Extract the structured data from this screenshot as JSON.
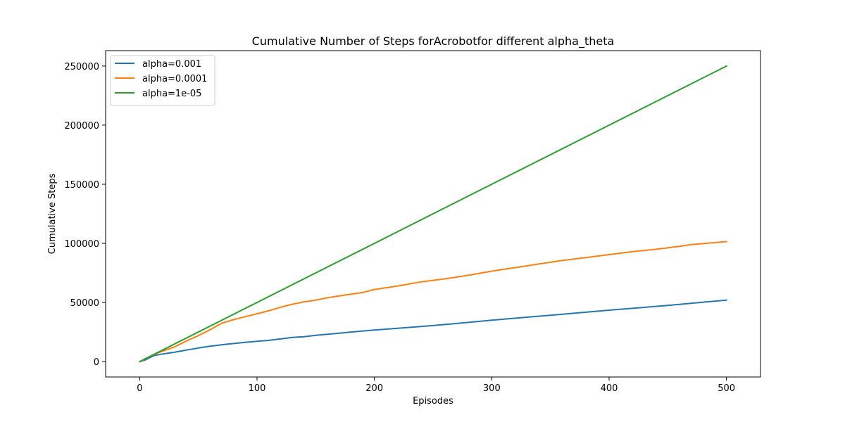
{
  "chart_data": {
    "type": "line",
    "title": "Cumulative Number of Steps forAcrobotfor different alpha_theta",
    "xlabel": "Episodes",
    "ylabel": "Cumulative Steps",
    "xlim": [
      -29,
      529
    ],
    "ylim": [
      -13000,
      263000
    ],
    "xticks": [
      0,
      100,
      200,
      300,
      400,
      500
    ],
    "yticks": [
      0,
      50000,
      100000,
      150000,
      200000,
      250000
    ],
    "xtick_labels": [
      "0",
      "100",
      "200",
      "300",
      "400",
      "500"
    ],
    "ytick_labels": [
      "0",
      "50000",
      "100000",
      "150000",
      "200000",
      "250000"
    ],
    "grid": false,
    "legend_position": "top-left",
    "series": [
      {
        "name": "alpha=0.001",
        "color": "#1f77b4",
        "points": [
          [
            0,
            0
          ],
          [
            5,
            1500
          ],
          [
            12,
            5000
          ],
          [
            20,
            6500
          ],
          [
            30,
            8000
          ],
          [
            40,
            9800
          ],
          [
            50,
            11500
          ],
          [
            60,
            13000
          ],
          [
            75,
            14800
          ],
          [
            90,
            16300
          ],
          [
            100,
            17200
          ],
          [
            110,
            18000
          ],
          [
            120,
            19200
          ],
          [
            130,
            20400
          ],
          [
            140,
            21000
          ],
          [
            150,
            22200
          ],
          [
            170,
            24000
          ],
          [
            180,
            25000
          ],
          [
            200,
            26700
          ],
          [
            220,
            28200
          ],
          [
            250,
            30500
          ],
          [
            300,
            35000
          ],
          [
            350,
            39200
          ],
          [
            400,
            43500
          ],
          [
            450,
            47500
          ],
          [
            500,
            52000
          ]
        ]
      },
      {
        "name": "alpha=0.0001",
        "color": "#ff7f0e",
        "points": [
          [
            0,
            0
          ],
          [
            10,
            5000
          ],
          [
            20,
            9000
          ],
          [
            30,
            12500
          ],
          [
            40,
            17500
          ],
          [
            50,
            22000
          ],
          [
            60,
            27000
          ],
          [
            70,
            32500
          ],
          [
            80,
            35500
          ],
          [
            90,
            38000
          ],
          [
            100,
            40500
          ],
          [
            110,
            43000
          ],
          [
            120,
            46000
          ],
          [
            130,
            48500
          ],
          [
            140,
            50500
          ],
          [
            150,
            52000
          ],
          [
            160,
            54000
          ],
          [
            170,
            55500
          ],
          [
            180,
            57000
          ],
          [
            190,
            58500
          ],
          [
            200,
            61000
          ],
          [
            220,
            64000
          ],
          [
            240,
            67500
          ],
          [
            260,
            70000
          ],
          [
            280,
            73000
          ],
          [
            300,
            76500
          ],
          [
            320,
            79500
          ],
          [
            340,
            82500
          ],
          [
            360,
            85500
          ],
          [
            380,
            88000
          ],
          [
            400,
            90500
          ],
          [
            420,
            93000
          ],
          [
            440,
            95000
          ],
          [
            460,
            97500
          ],
          [
            470,
            99000
          ],
          [
            500,
            101500
          ]
        ]
      },
      {
        "name": "alpha=1e-05",
        "color": "#2ca02c",
        "points": [
          [
            0,
            0
          ],
          [
            500,
            250000
          ]
        ]
      }
    ]
  }
}
